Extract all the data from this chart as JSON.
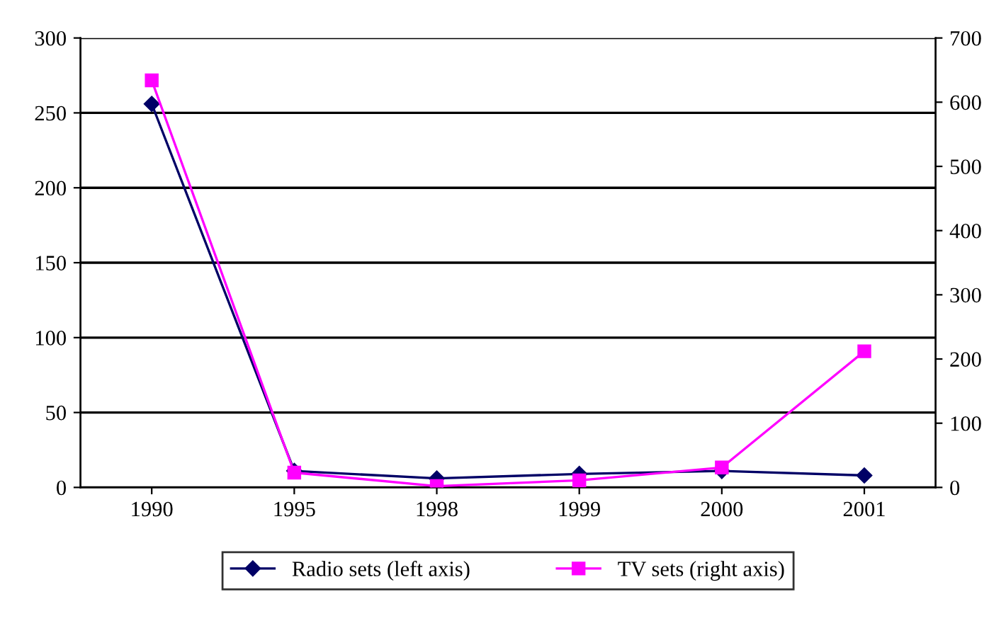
{
  "chart_data": {
    "type": "line",
    "categories": [
      "1990",
      "1995",
      "1998",
      "1999",
      "2000",
      "2001"
    ],
    "series": [
      {
        "name": "Radio sets (left axis)",
        "color": "#000066",
        "marker": "diamond",
        "values": [
          256,
          11,
          6,
          9,
          11,
          8
        ]
      },
      {
        "name": "TV sets (right axis)",
        "color": "#ff00ff",
        "marker": "square",
        "axis": "y2",
        "values": [
          634,
          23,
          2,
          11,
          31,
          212
        ]
      }
    ],
    "ylim": [
      0,
      300
    ],
    "yticks": [
      0,
      50,
      100,
      150,
      200,
      250,
      300
    ],
    "y2lim": [
      0,
      700
    ],
    "y2ticks": [
      0,
      100,
      200,
      300,
      400,
      500,
      600,
      700
    ],
    "grid": "y",
    "legend": "bottom",
    "line_style": "solid"
  }
}
